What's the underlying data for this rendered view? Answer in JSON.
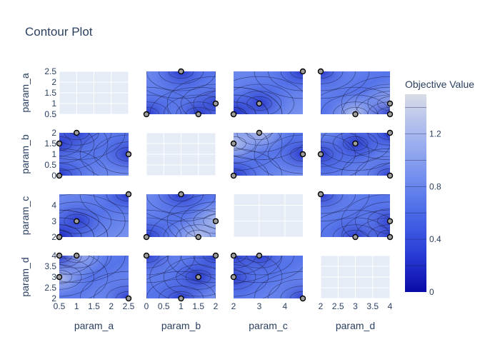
{
  "chart_data": {
    "type": "contour",
    "title": "Contour Plot",
    "params": [
      "param_a",
      "param_b",
      "param_c",
      "param_d"
    ],
    "ranges": {
      "param_a": [
        0.5,
        2.5
      ],
      "param_b": [
        0,
        2
      ],
      "param_c": [
        2,
        4.7
      ],
      "param_d": [
        2,
        4
      ]
    },
    "x_ticks": {
      "param_a": [
        0.5,
        1,
        1.5,
        2,
        2.5
      ],
      "param_b": [
        0,
        0.5,
        1,
        1.5,
        2
      ],
      "param_c": [
        2,
        3,
        4
      ],
      "param_d": [
        2,
        2.5,
        3,
        3.5,
        4
      ]
    },
    "y_ticks": {
      "param_a": [
        0.5,
        1,
        1.5,
        2,
        2.5
      ],
      "param_b": [
        0,
        0.5,
        1,
        1.5,
        2
      ],
      "param_c": [
        2,
        3,
        4
      ],
      "param_d": [
        2,
        2.5,
        3,
        3.5,
        4
      ]
    },
    "x_tick_labels": {
      "param_a": [
        "0.5",
        "1",
        "1.5",
        "2",
        "2.5"
      ],
      "param_b": [
        "0",
        "0.5",
        "1",
        "1.5",
        "2"
      ],
      "param_c": [
        "2",
        "3",
        "4"
      ],
      "param_d": [
        "2",
        "2.5",
        "3",
        "3.5",
        "4"
      ]
    },
    "y_tick_labels": {
      "param_a": [
        "0.5",
        "1",
        "1.5",
        "2",
        "2.5"
      ],
      "param_b": [
        "0",
        "0.5",
        "1",
        "1.5",
        "2"
      ],
      "param_c": [
        "2",
        "3",
        "4"
      ],
      "param_d": [
        "2",
        "2.5",
        "3",
        "3.5",
        "4"
      ]
    },
    "trials": [
      {
        "param_a": 1.0,
        "param_b": 2.0,
        "param_c": 3.0,
        "param_d": 4.0
      },
      {
        "param_a": 2.5,
        "param_b": 1.0,
        "param_c": 4.7,
        "param_d": 2.0
      },
      {
        "param_a": 0.5,
        "param_b": 1.5,
        "param_c": 2.0,
        "param_d": 3.0
      },
      {
        "param_a": 0.5,
        "param_b": 0.0,
        "param_c": 2.0,
        "param_d": 4.0
      }
    ],
    "colorbar": {
      "title": "Objective Value",
      "ticks": [
        0,
        0.4,
        0.8,
        1.2
      ],
      "tick_labels": [
        "0",
        "0.4",
        "0.8",
        "1.2"
      ],
      "range": [
        0,
        1.5
      ],
      "colorscale": [
        "#0a0aa8",
        "#2a3fd8",
        "#4a6ae8",
        "#7893ee",
        "#a8b7ef",
        "#d8dce6"
      ]
    }
  }
}
